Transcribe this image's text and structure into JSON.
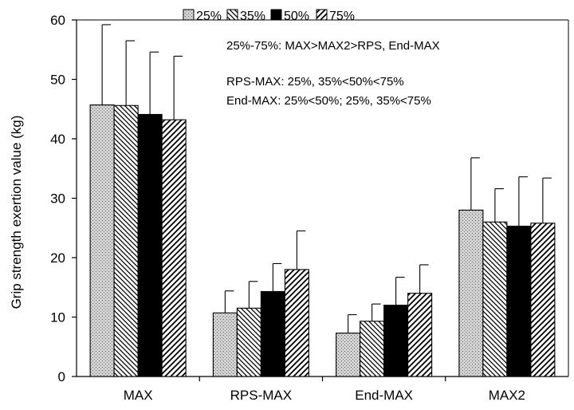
{
  "chart_data": {
    "type": "bar",
    "title": "",
    "xlabel": "",
    "ylabel": "Grip strength exertion value (kg)",
    "ylim": [
      0,
      60
    ],
    "yticks": [
      0,
      10,
      20,
      30,
      40,
      50,
      60
    ],
    "grid": false,
    "legend_position": "top",
    "categories": [
      "MAX",
      "RPS-MAX",
      "End-MAX",
      "MAX2"
    ],
    "series": [
      {
        "name": "25%",
        "pattern": "dots",
        "values": [
          45.7,
          10.7,
          7.3,
          28.0
        ],
        "errors": [
          13.5,
          3.7,
          3.1,
          8.8
        ]
      },
      {
        "name": "35%",
        "pattern": "back-diagonal",
        "values": [
          45.6,
          11.5,
          9.3,
          26.0
        ],
        "errors": [
          10.9,
          4.5,
          2.9,
          5.6
        ]
      },
      {
        "name": "50%",
        "pattern": "solid",
        "values": [
          44.1,
          14.3,
          12.0,
          25.3
        ],
        "errors": [
          10.5,
          4.7,
          4.7,
          8.3
        ]
      },
      {
        "name": "75%",
        "pattern": "forward-diagonal",
        "values": [
          43.2,
          18.0,
          14.0,
          25.8
        ],
        "errors": [
          10.7,
          6.5,
          4.8,
          7.6
        ]
      }
    ],
    "annotations": [
      "25%-75%: MAX>MAX2>RPS, End-MAX",
      "RPS-MAX: 25%, 35%<50%<75%",
      "End-MAX: 25%<50%;   25%, 35%<75%"
    ],
    "colors": {
      "bar_edge": "#000000",
      "dots_fill": "#c8c8c8",
      "solid_fill": "#000000",
      "background": "#ffffff"
    }
  }
}
